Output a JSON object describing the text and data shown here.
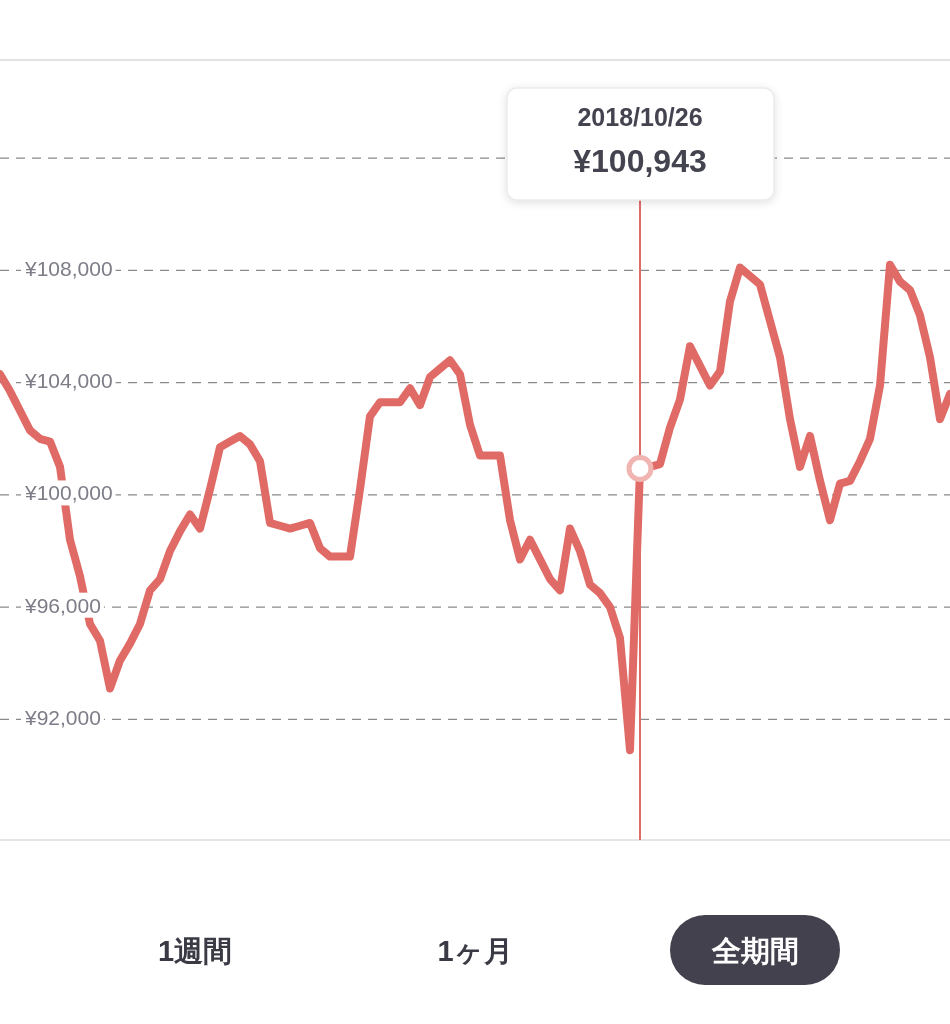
{
  "chart_data": {
    "type": "line",
    "categories": [
      null,
      null,
      null,
      null,
      null,
      null,
      null,
      null,
      null,
      null,
      null,
      null,
      null,
      null,
      null,
      null,
      null,
      null,
      null,
      null,
      null,
      null,
      null,
      null,
      null,
      null,
      null,
      null,
      null,
      null,
      null,
      null,
      null,
      null,
      null,
      null,
      null,
      null,
      null,
      null,
      null,
      null,
      null,
      null,
      null,
      null,
      null,
      null,
      null,
      null,
      null,
      null,
      null,
      null,
      null,
      null,
      null,
      null,
      null,
      null,
      null,
      null,
      null,
      null,
      null,
      null,
      null,
      null,
      null,
      null,
      null,
      null,
      null,
      null,
      null,
      null,
      null,
      null,
      null,
      null,
      null,
      null,
      null,
      null,
      null,
      null,
      null,
      null,
      null,
      null,
      null,
      null,
      null,
      null,
      null,
      null
    ],
    "series": [
      {
        "color": "#e06b66",
        "values": [
          104300,
          103700,
          103000,
          102300,
          102000,
          101900,
          101000,
          98400,
          97100,
          95400,
          94800,
          93100,
          94100,
          94700,
          95400,
          96600,
          97000,
          98000,
          98700,
          99300,
          98800,
          100200,
          101700,
          101900,
          102100,
          101800,
          101200,
          99000,
          98900,
          98800,
          98900,
          99000,
          98100,
          97800,
          97800,
          97800,
          100200,
          102800,
          103300,
          103300,
          103300,
          103800,
          103200,
          104200,
          104500,
          104800,
          104300,
          102500,
          101400,
          101400,
          101400,
          99100,
          97700,
          98400,
          97700,
          97000,
          96600,
          98800,
          98000,
          96800,
          96500,
          96000,
          94900,
          90900,
          100943,
          101000,
          101100,
          102400,
          103400,
          105300,
          104600,
          103900,
          104400,
          106900,
          108100,
          107800,
          107500,
          106200,
          104900,
          102700,
          101000,
          102100,
          100500,
          99100,
          100400,
          100500,
          101200,
          102000,
          103900,
          108200,
          107600,
          107300,
          106400,
          104900,
          102700,
          103600
        ]
      }
    ],
    "ylim": [
      87700,
      115500
    ],
    "yticks": [
      {
        "value": 92000,
        "label": "¥92,000"
      },
      {
        "value": 96000,
        "label": "¥96,000"
      },
      {
        "value": 100000,
        "label": "¥100,000"
      },
      {
        "value": 104000,
        "label": "¥104,000"
      },
      {
        "value": 108000,
        "label": "¥108,000"
      },
      {
        "value": 112000,
        "label": null
      }
    ],
    "grid": "y",
    "tick_labels": "y",
    "marker": "none",
    "line_style": "solid",
    "annotations": [
      "2018/10/26",
      "¥100,943",
      "1週間",
      "1ヶ月",
      "全期間"
    ]
  }
}
